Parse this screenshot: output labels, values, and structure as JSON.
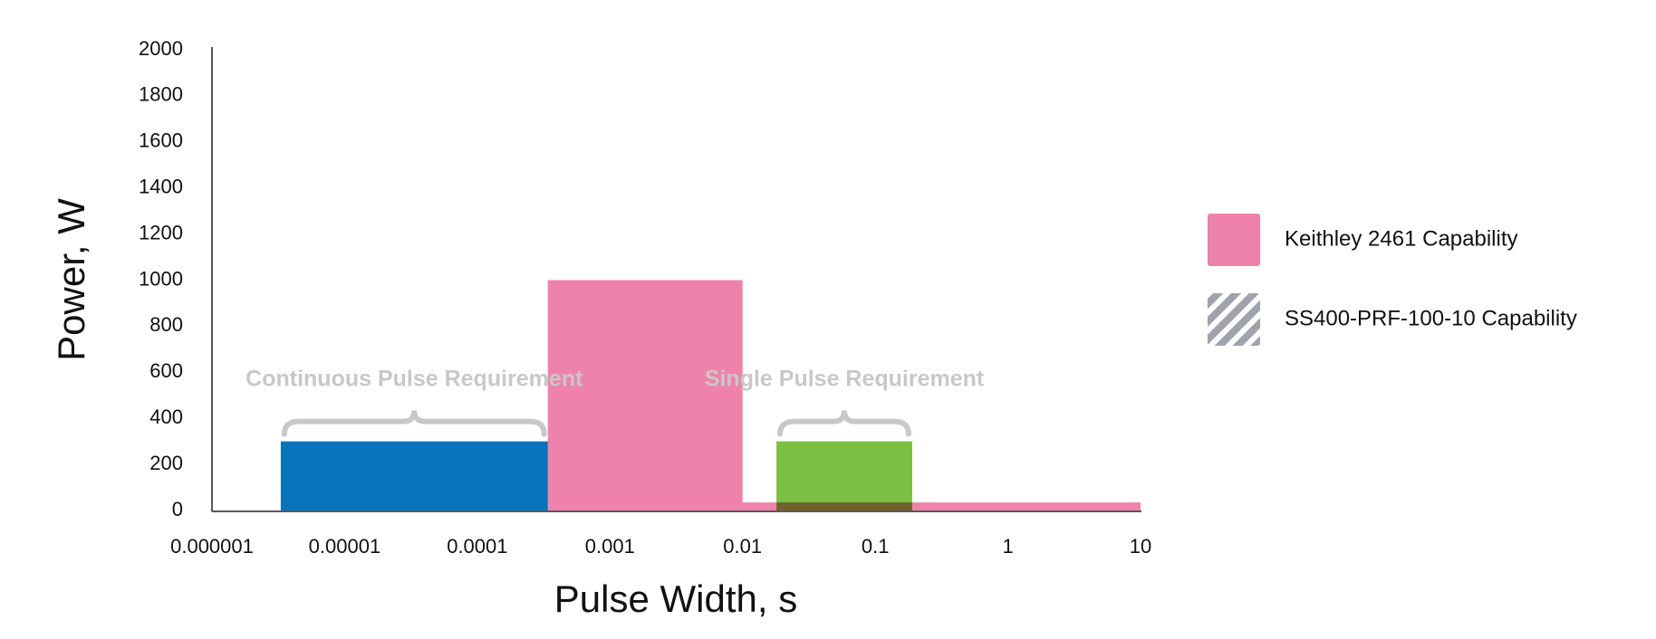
{
  "chart_data": {
    "type": "bar",
    "xlabel": "Pulse Width, s",
    "ylabel": "Power, W",
    "xlog": true,
    "xlim": [
      1e-06,
      10
    ],
    "ylim": [
      0,
      2000
    ],
    "xticks": [
      1e-06,
      1e-05,
      0.0001,
      0.001,
      0.01,
      0.1,
      1,
      10
    ],
    "yticks": [
      0,
      200,
      400,
      600,
      800,
      1000,
      1200,
      1400,
      1600,
      1800,
      2000
    ],
    "series": [
      {
        "name": "Keithley 2461 Capability",
        "color": "#ef82ab",
        "x0": [
          0.00034,
          0.01
        ],
        "x1": [
          0.01,
          10
        ],
        "values": [
          1000,
          35
        ]
      },
      {
        "name": "SS400-PRF-100-10 Capability",
        "color": "#a0a3ad",
        "pattern": "hatch",
        "x0": [],
        "x1": [],
        "values": []
      }
    ],
    "requirements": [
      {
        "label": "Continuous Pulse Requirement",
        "color": "#0874bc",
        "x0": 3.3e-06,
        "x1": 0.00034,
        "value": 300
      },
      {
        "label": "Single Pulse Requirement",
        "color": "#7bbf43",
        "x0": 0.018,
        "x1": 0.19,
        "value": 300
      }
    ]
  }
}
